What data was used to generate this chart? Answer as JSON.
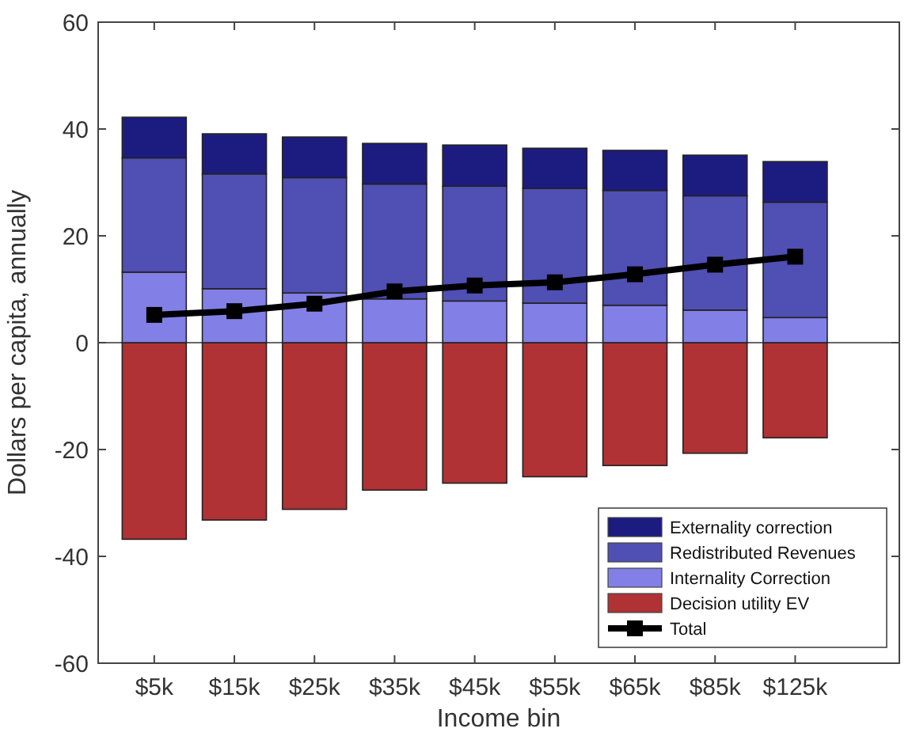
{
  "chart_data": {
    "type": "bar",
    "stacked": true,
    "xlabel": "Income bin",
    "ylabel": "Dollars per capita, annually",
    "categories": [
      "$5k",
      "$15k",
      "$25k",
      "$35k",
      "$45k",
      "$55k",
      "$65k",
      "$85k",
      "$125k"
    ],
    "series": [
      {
        "name": "Decision utility EV",
        "color": "#b03234",
        "values": [
          -36.8,
          -33.2,
          -31.2,
          -27.6,
          -26.3,
          -25.1,
          -23.0,
          -20.7,
          -17.8
        ]
      },
      {
        "name": "Internality Correction",
        "color": "#8280e6",
        "values": [
          13.2,
          10.1,
          9.3,
          8.2,
          7.8,
          7.4,
          7.0,
          6.1,
          4.7
        ]
      },
      {
        "name": "Redistributed Revenues",
        "color": "#4f4fb4",
        "values": [
          21.4,
          21.5,
          21.6,
          21.5,
          21.5,
          21.5,
          21.5,
          21.4,
          21.6
        ]
      },
      {
        "name": "Externality correction",
        "color": "#1c1c80",
        "values": [
          7.6,
          7.5,
          7.6,
          7.6,
          7.7,
          7.5,
          7.5,
          7.6,
          7.6
        ]
      },
      {
        "name": "Total",
        "type": "line",
        "color": "#000000",
        "marker": "square",
        "values": [
          5.2,
          5.9,
          7.3,
          9.6,
          10.7,
          11.3,
          12.8,
          14.6,
          16.1
        ]
      }
    ],
    "ylim": [
      -60,
      60
    ],
    "yticks": [
      -60,
      -40,
      -20,
      0,
      20,
      40,
      60
    ],
    "ref_lines": [
      {
        "axis": "y",
        "value": 0,
        "color": "#666666"
      }
    ],
    "legend": "bottom right"
  }
}
